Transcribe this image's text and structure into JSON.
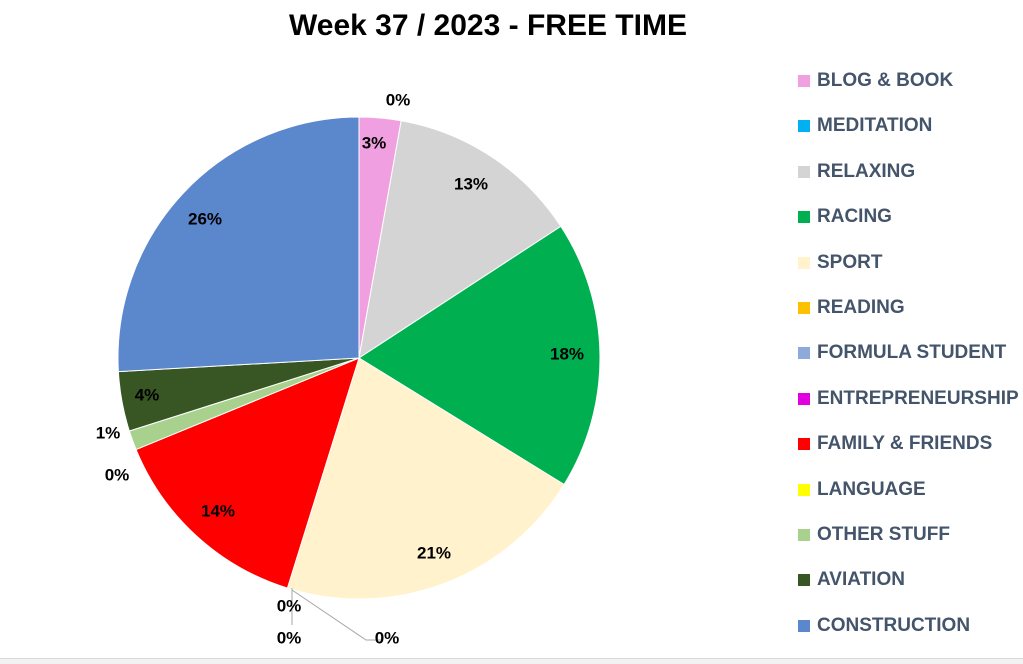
{
  "chart_data": {
    "type": "pie",
    "title": "Week 37 / 2023 - FREE TIME",
    "legend_position": "right",
    "slices": [
      {
        "name": "BLOG & BOOK",
        "value": 2.8,
        "label": "3%",
        "color": "#f0a0e0"
      },
      {
        "name": "MEDITATION",
        "value": 0.0,
        "label": "0%",
        "color": "#00b0f0"
      },
      {
        "name": "RELAXING",
        "value": 13.0,
        "label": "13%",
        "color": "#d4d4d4"
      },
      {
        "name": "RACING",
        "value": 18.0,
        "label": "18%",
        "color": "#00b050"
      },
      {
        "name": "SPORT",
        "value": 21.0,
        "label": "21%",
        "color": "#fff2cc"
      },
      {
        "name": "READING",
        "value": 0.0,
        "label": "0%",
        "color": "#ffc000"
      },
      {
        "name": "FORMULA STUDENT",
        "value": 0.0,
        "label": "0%",
        "color": "#8eaadb"
      },
      {
        "name": "ENTREPRENEURSHIP",
        "value": 0.0,
        "label": "0%",
        "color": "#e000e0"
      },
      {
        "name": "FAMILY & FRIENDS",
        "value": 14.0,
        "label": "14%",
        "color": "#ff0000"
      },
      {
        "name": "LANGUAGE",
        "value": 0.0,
        "label": "0%",
        "color": "#ffff00"
      },
      {
        "name": "OTHER STUFF",
        "value": 1.3,
        "label": "1%",
        "color": "#a9d18e"
      },
      {
        "name": "AVIATION",
        "value": 4.0,
        "label": "4%",
        "color": "#375623"
      },
      {
        "name": "CONSTRUCTION",
        "value": 25.9,
        "label": "26%",
        "color": "#5b87cd"
      }
    ]
  }
}
